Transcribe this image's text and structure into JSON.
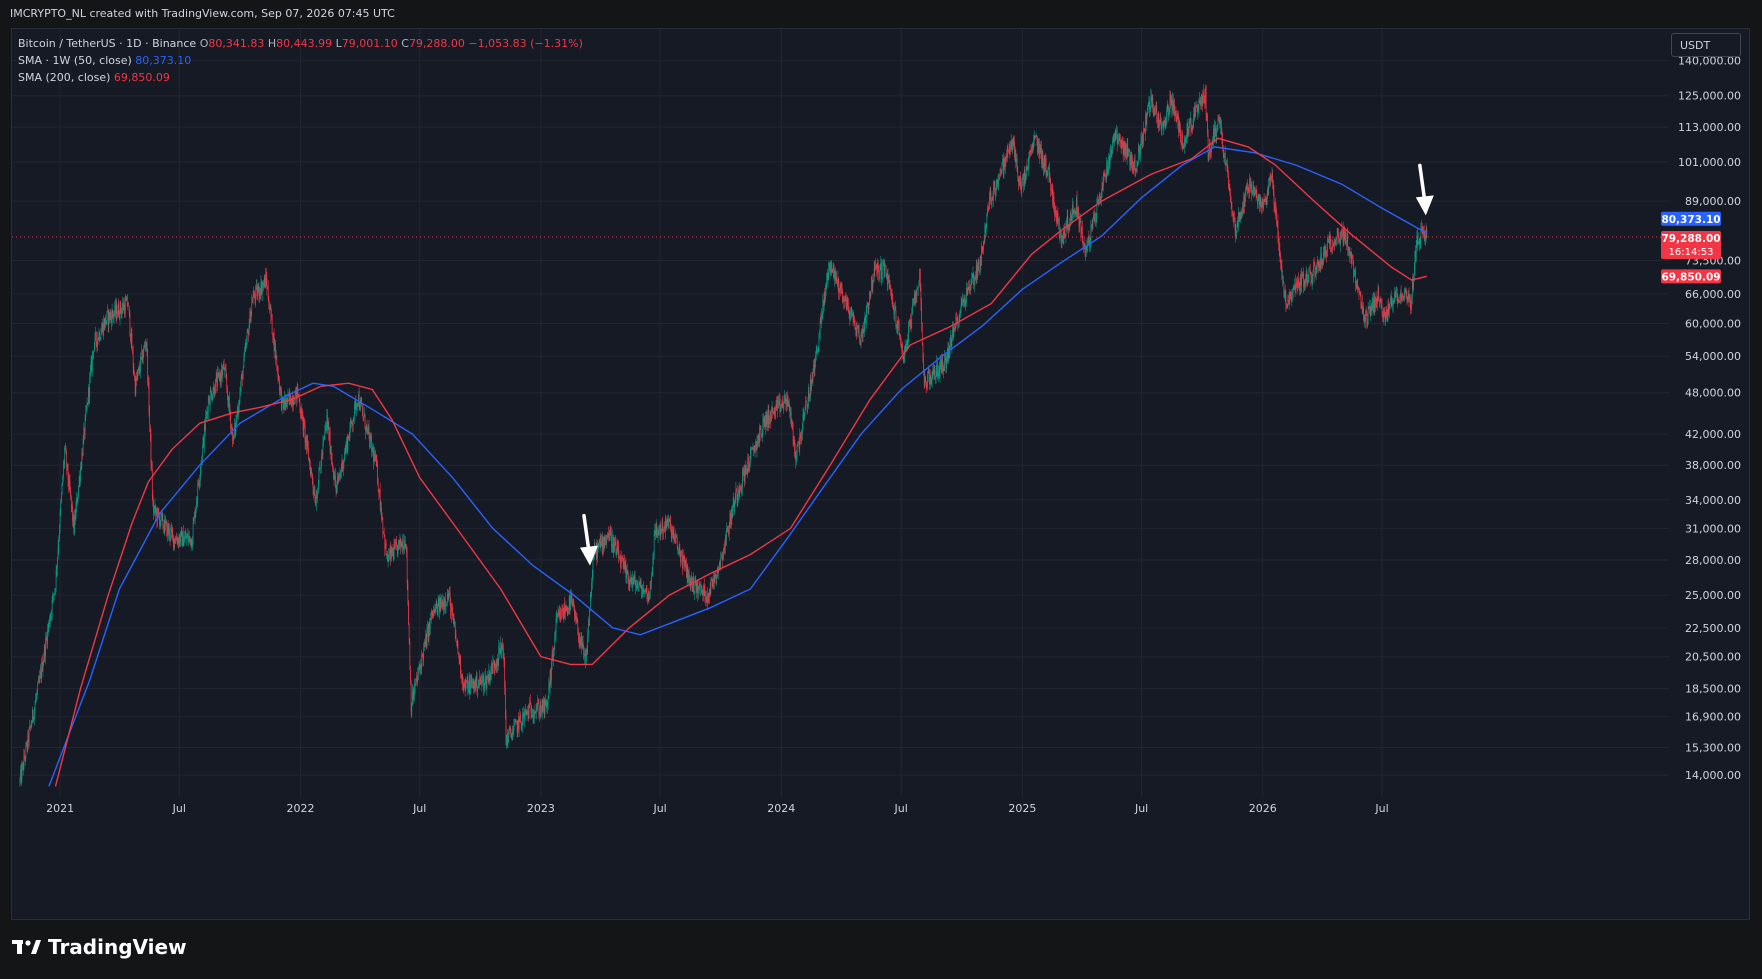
{
  "header": {
    "attribution": "IMCRYPTO_NL created with TradingView.com, Sep 07, 2026 07:45 UTC"
  },
  "legend": {
    "symbol": "Bitcoin / TetherUS · 1D · Binance",
    "open_label": "O",
    "open": "80,341.83",
    "high_label": "H",
    "high": "80,443.99",
    "low_label": "L",
    "low": "79,001.10",
    "close_label": "C",
    "close": "79,288.00",
    "change": "−1,053.83 (−1.31%)",
    "sma1_label": "SMA · 1W (50, close)",
    "sma1_value": "80,373.10",
    "sma2_label": "SMA (200, close)",
    "sma2_value": "69,850.09"
  },
  "currency_button": "USDT",
  "badges": {
    "sma1": "80,373.10",
    "price": "79,288.00",
    "countdown": "16:14:53",
    "price_hidden_tick": "73,500.00",
    "sma2": "69,850.09"
  },
  "branding": {
    "logo_text": "TradingView"
  },
  "colors": {
    "background": "#161a25",
    "grid": "#232631",
    "up": "#089981",
    "down": "#f23645",
    "sma_weekly": "#2962ff",
    "sma_200": "#f23645",
    "annotation_arrow": "#ffffff"
  },
  "chart_data": {
    "type": "candlestick",
    "title": "Bitcoin / TetherUS · 1D · Binance",
    "y_scale": "log",
    "y_ticks": [
      140000,
      125000,
      113000,
      101000,
      89000,
      73500,
      66000,
      60000,
      54000,
      48000,
      42000,
      38000,
      34000,
      31000,
      28000,
      25000,
      22500,
      20500,
      18500,
      16900,
      15300,
      14000
    ],
    "y_tick_labels": [
      "140,000.00",
      "125,000.00",
      "113,000.00",
      "101,000.00",
      "89,000.00",
      "73,500.00",
      "66,000.00",
      "60,000.00",
      "54,000.00",
      "48,000.00",
      "42,000.00",
      "38,000.00",
      "34,000.00",
      "31,000.00",
      "28,000.00",
      "25,000.00",
      "22,500.00",
      "20,500.00",
      "18,500.00",
      "16,900.00",
      "15,300.00",
      "14,000.00"
    ],
    "x_ticks": [
      "2021",
      "Jul",
      "2022",
      "Jul",
      "2023",
      "Jul",
      "2024",
      "Jul",
      "2025",
      "Jul",
      "2026",
      "Jul"
    ],
    "x_tick_dates": [
      "2021-01-01",
      "2021-07-01",
      "2022-01-01",
      "2022-07-01",
      "2023-01-01",
      "2023-07-01",
      "2024-01-01",
      "2024-07-01",
      "2025-01-01",
      "2025-07-01",
      "2026-01-01",
      "2026-07-01"
    ],
    "x_range": [
      "2020-10-20",
      "2026-12-15"
    ],
    "y_range": [
      13300,
      155000
    ],
    "price_path": [
      [
        "2020-11-01",
        13700
      ],
      [
        "2020-12-01",
        19000
      ],
      [
        "2020-12-25",
        26000
      ],
      [
        "2021-01-08",
        40000
      ],
      [
        "2021-01-22",
        31000
      ],
      [
        "2021-02-21",
        56000
      ],
      [
        "2021-03-13",
        61000
      ],
      [
        "2021-04-14",
        64000
      ],
      [
        "2021-04-25",
        49000
      ],
      [
        "2021-05-12",
        57000
      ],
      [
        "2021-05-22",
        33000
      ],
      [
        "2021-06-22",
        30000
      ],
      [
        "2021-07-20",
        30000
      ],
      [
        "2021-08-14",
        47000
      ],
      [
        "2021-09-07",
        52000
      ],
      [
        "2021-09-21",
        41000
      ],
      [
        "2021-10-20",
        65000
      ],
      [
        "2021-11-10",
        69000
      ],
      [
        "2021-12-04",
        46000
      ],
      [
        "2021-12-28",
        48000
      ],
      [
        "2022-01-24",
        34000
      ],
      [
        "2022-02-10",
        44000
      ],
      [
        "2022-02-24",
        35000
      ],
      [
        "2022-03-29",
        47500
      ],
      [
        "2022-04-26",
        38000
      ],
      [
        "2022-05-12",
        28000
      ],
      [
        "2022-06-10",
        30000
      ],
      [
        "2022-06-18",
        17600
      ],
      [
        "2022-07-20",
        23500
      ],
      [
        "2022-08-14",
        25000
      ],
      [
        "2022-09-06",
        18600
      ],
      [
        "2022-10-10",
        19000
      ],
      [
        "2022-11-05",
        21300
      ],
      [
        "2022-11-09",
        15700
      ],
      [
        "2022-12-15",
        17300
      ],
      [
        "2023-01-10",
        17400
      ],
      [
        "2023-01-25",
        23000
      ],
      [
        "2023-02-16",
        24500
      ],
      [
        "2023-03-10",
        20000
      ],
      [
        "2023-03-22",
        28500
      ],
      [
        "2023-04-14",
        30500
      ],
      [
        "2023-05-12",
        26500
      ],
      [
        "2023-06-15",
        25000
      ],
      [
        "2023-06-23",
        30500
      ],
      [
        "2023-07-14",
        31500
      ],
      [
        "2023-08-17",
        26000
      ],
      [
        "2023-09-11",
        25000
      ],
      [
        "2023-10-01",
        28000
      ],
      [
        "2023-10-24",
        34500
      ],
      [
        "2023-12-08",
        44000
      ],
      [
        "2024-01-11",
        47000
      ],
      [
        "2024-01-23",
        39000
      ],
      [
        "2024-02-20",
        52000
      ],
      [
        "2024-03-14",
        73000
      ],
      [
        "2024-05-01",
        57000
      ],
      [
        "2024-05-21",
        71000
      ],
      [
        "2024-06-07",
        71500
      ],
      [
        "2024-07-05",
        54000
      ],
      [
        "2024-07-29",
        70000
      ],
      [
        "2024-08-05",
        49500
      ],
      [
        "2024-09-06",
        53000
      ],
      [
        "2024-10-01",
        64000
      ],
      [
        "2024-10-29",
        73000
      ],
      [
        "2024-11-12",
        89000
      ],
      [
        "2024-12-17",
        108000
      ],
      [
        "2024-12-30",
        92000
      ],
      [
        "2025-01-20",
        109000
      ],
      [
        "2025-02-10",
        97000
      ],
      [
        "2025-02-28",
        79000
      ],
      [
        "2025-03-24",
        88000
      ],
      [
        "2025-04-07",
        75000
      ],
      [
        "2025-05-22",
        111000
      ],
      [
        "2025-06-22",
        99000
      ],
      [
        "2025-07-14",
        123000
      ],
      [
        "2025-08-03",
        112000
      ],
      [
        "2025-08-14",
        124000
      ],
      [
        "2025-09-01",
        108000
      ],
      [
        "2025-10-06",
        126000
      ],
      [
        "2025-10-10",
        104000
      ],
      [
        "2025-10-27",
        116000
      ],
      [
        "2025-11-21",
        81000
      ],
      [
        "2025-12-10",
        94000
      ],
      [
        "2025-12-31",
        87000
      ],
      [
        "2026-01-14",
        97000
      ],
      [
        "2026-02-05",
        63000
      ],
      [
        "2026-02-20",
        68000
      ],
      [
        "2026-03-15",
        70000
      ],
      [
        "2026-04-22",
        80000
      ],
      [
        "2026-05-08",
        79000
      ],
      [
        "2026-06-05",
        60000
      ],
      [
        "2026-06-25",
        66000
      ],
      [
        "2026-07-05",
        60500
      ],
      [
        "2026-07-20",
        66000
      ],
      [
        "2026-08-05",
        65500
      ],
      [
        "2026-08-14",
        64000
      ],
      [
        "2026-08-22",
        78000
      ],
      [
        "2026-09-01",
        80500
      ],
      [
        "2026-09-07",
        79288
      ]
    ],
    "series": [
      {
        "name": "SMA · 1W (50, close)",
        "color": "#2962ff",
        "points": [
          [
            "2020-12-15",
            13500
          ],
          [
            "2021-02-15",
            19000
          ],
          [
            "2021-04-01",
            25500
          ],
          [
            "2021-06-01",
            32500
          ],
          [
            "2021-08-01",
            38000
          ],
          [
            "2021-10-01",
            43500
          ],
          [
            "2021-12-10",
            47500
          ],
          [
            "2022-01-20",
            49500
          ],
          [
            "2022-02-20",
            49000
          ],
          [
            "2022-04-20",
            45500
          ],
          [
            "2022-06-20",
            42000
          ],
          [
            "2022-08-20",
            36500
          ],
          [
            "2022-10-20",
            31000
          ],
          [
            "2022-12-20",
            27500
          ],
          [
            "2023-02-20",
            25000
          ],
          [
            "2023-04-20",
            22500
          ],
          [
            "2023-06-01",
            22000
          ],
          [
            "2023-07-15",
            22800
          ],
          [
            "2023-09-15",
            24000
          ],
          [
            "2023-11-15",
            25500
          ],
          [
            "2024-01-10",
            30000
          ],
          [
            "2024-03-01",
            35000
          ],
          [
            "2024-05-01",
            42000
          ],
          [
            "2024-07-01",
            48500
          ],
          [
            "2024-09-01",
            54000
          ],
          [
            "2024-11-01",
            59500
          ],
          [
            "2025-01-01",
            67000
          ],
          [
            "2025-03-01",
            73000
          ],
          [
            "2025-05-01",
            79500
          ],
          [
            "2025-07-01",
            90000
          ],
          [
            "2025-09-01",
            100000
          ],
          [
            "2025-10-20",
            106000
          ],
          [
            "2025-12-20",
            104000
          ],
          [
            "2026-02-20",
            100000
          ],
          [
            "2026-05-01",
            94000
          ],
          [
            "2026-07-01",
            87000
          ],
          [
            "2026-08-25",
            81500
          ],
          [
            "2026-09-07",
            80373
          ]
        ]
      },
      {
        "name": "SMA (200, close)",
        "color": "#f23645",
        "points": [
          [
            "2020-12-25",
            13500
          ],
          [
            "2021-02-01",
            18500
          ],
          [
            "2021-03-15",
            25000
          ],
          [
            "2021-04-20",
            31500
          ],
          [
            "2021-05-15",
            36000
          ],
          [
            "2021-06-20",
            40000
          ],
          [
            "2021-08-01",
            43500
          ],
          [
            "2021-09-20",
            45000
          ],
          [
            "2021-11-01",
            45800
          ],
          [
            "2021-12-20",
            47000
          ],
          [
            "2022-02-01",
            49000
          ],
          [
            "2022-03-15",
            49500
          ],
          [
            "2022-04-20",
            48500
          ],
          [
            "2022-05-20",
            44000
          ],
          [
            "2022-07-01",
            36500
          ],
          [
            "2022-09-01",
            30500
          ],
          [
            "2022-11-01",
            25500
          ],
          [
            "2023-01-01",
            20500
          ],
          [
            "2023-02-15",
            20000
          ],
          [
            "2023-03-20",
            20000
          ],
          [
            "2023-05-15",
            22500
          ],
          [
            "2023-07-15",
            25000
          ],
          [
            "2023-09-15",
            26800
          ],
          [
            "2023-11-15",
            28500
          ],
          [
            "2024-01-15",
            31000
          ],
          [
            "2024-03-15",
            38000
          ],
          [
            "2024-05-15",
            47000
          ],
          [
            "2024-07-15",
            56000
          ],
          [
            "2024-09-15",
            59500
          ],
          [
            "2024-11-15",
            64000
          ],
          [
            "2025-01-15",
            75000
          ],
          [
            "2025-03-01",
            81000
          ],
          [
            "2025-05-01",
            89000
          ],
          [
            "2025-07-15",
            97000
          ],
          [
            "2025-09-15",
            102000
          ],
          [
            "2025-10-25",
            109000
          ],
          [
            "2025-12-10",
            106000
          ],
          [
            "2026-01-20",
            100000
          ],
          [
            "2026-03-20",
            89000
          ],
          [
            "2026-05-15",
            80000
          ],
          [
            "2026-07-15",
            72000
          ],
          [
            "2026-08-15",
            69000
          ],
          [
            "2026-09-07",
            69850
          ]
        ]
      }
    ],
    "annotations": [
      {
        "type": "arrow-down",
        "date": "2023-03-15",
        "price": 27500
      },
      {
        "type": "arrow-down",
        "date": "2026-09-04",
        "price": 85000
      }
    ]
  }
}
